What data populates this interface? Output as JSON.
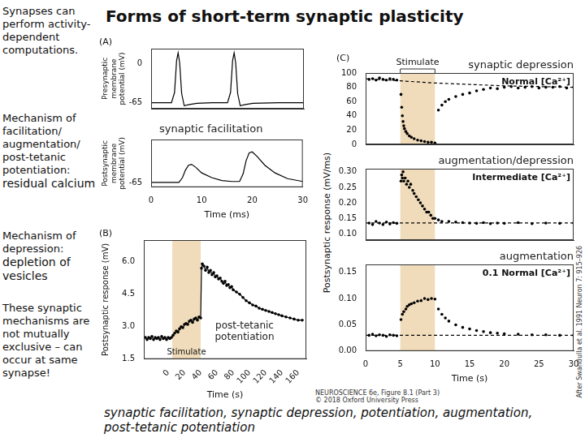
{
  "slide": {
    "title": "Forms of short-term synaptic plasticity",
    "sidebar": [
      {
        "text": "Synapses can perform activity-dependent computations."
      },
      {
        "text": "Mechanism of facilitation/ augmentation/ post-tetanic potentiation:",
        "emphasis": "residual calcium"
      },
      {
        "text": "Mechanism of depression:",
        "emphasis": "depletion of vesicles"
      },
      {
        "text": "These synaptic mechanisms are not mutually exclusive – can occur at same synapse!"
      }
    ],
    "footer": "synaptic facilitation, synaptic depression, potentiation, augmentation, post-tetanic potentiation",
    "credits": [
      "NEUROSCIENCE 6e, Figure 8.1 (Part 3)",
      "© 2018 Oxford University Press",
      "After Swandulla et al. 1991 Neuron 7: 915–926"
    ]
  },
  "chart_data": [
    {
      "type": "line",
      "panel_label": "(A)",
      "ylabel": "Presynaptic membrane potential (mV)",
      "xlim": [
        0,
        30
      ],
      "ylim": [
        -75,
        25
      ],
      "yticks": [
        -65,
        0
      ],
      "grid": false,
      "tick_labels": "y",
      "series": [
        {
          "color": "#000000",
          "line_style": "solid",
          "marker": "none",
          "x": [
            0,
            4,
            4.6,
            5,
            5.3,
            5.6,
            6,
            6.5,
            7.5,
            9,
            12,
            15,
            15.6,
            16,
            16.3,
            16.6,
            17,
            17.5,
            18.5,
            20,
            25,
            30
          ],
          "values": [
            -65,
            -65,
            -48,
            5,
            18,
            2,
            -50,
            -70,
            -68,
            -66,
            -65,
            -65,
            -48,
            5,
            18,
            2,
            -50,
            -70,
            -68,
            -66,
            -65,
            -65
          ]
        }
      ]
    },
    {
      "type": "line",
      "ylabel": "Postsynaptic membrane potential (mV)",
      "xlabel": "Time (ms)",
      "annotation": "synaptic facilitation",
      "xlim": [
        0,
        30
      ],
      "xticks": [
        0,
        10,
        20,
        30
      ],
      "ylim": [
        -70,
        -20
      ],
      "yticks": [
        -65
      ],
      "grid": false,
      "series": [
        {
          "color": "#000000",
          "line_style": "solid",
          "marker": "none",
          "x": [
            0,
            5.5,
            6.2,
            6.8,
            7.4,
            8,
            8.8,
            10,
            12,
            14,
            16,
            17.5,
            18.2,
            18.8,
            19.4,
            20,
            21,
            22.5,
            24.5,
            27,
            30
          ],
          "values": [
            -65,
            -65,
            -60,
            -52,
            -47,
            -46,
            -49,
            -55,
            -60,
            -63,
            -64,
            -64,
            -56,
            -42,
            -34,
            -33,
            -38,
            -47,
            -55,
            -61,
            -64
          ]
        }
      ]
    },
    {
      "type": "line",
      "panel_label": "(B)",
      "ylabel": "Postsynaptic response (mV)",
      "xlabel": "Time (s)",
      "annotation": "post-tetanic potentiation",
      "stimulus": [
        5,
        40
      ],
      "stimulus_label": "Stimulate",
      "xlim": [
        -30,
        170
      ],
      "xticks": [
        0,
        20,
        40,
        60,
        80,
        100,
        120,
        140,
        160
      ],
      "ylim": [
        1.5,
        7
      ],
      "yticks": [
        1.5,
        {
          "value": 3,
          "label": "3.0"
        },
        4.5,
        {
          "value": 6,
          "label": "6.0"
        }
      ],
      "grid": false,
      "series": [
        {
          "color": "#000000",
          "line_style": "solid",
          "marker": "circle",
          "x": [
            -28,
            -26,
            -24,
            -22,
            -20,
            -18,
            -16,
            -14,
            -12,
            -10,
            -8,
            -6,
            -4,
            -2,
            0,
            2,
            4,
            6,
            8,
            10,
            12,
            14,
            16,
            18,
            20,
            22,
            24,
            26,
            28,
            30,
            32,
            34,
            36,
            38,
            40,
            41,
            42,
            44,
            46,
            48,
            50,
            52,
            54,
            56,
            58,
            60,
            62,
            64,
            66,
            68,
            70,
            72,
            74,
            76,
            78,
            80,
            84,
            88,
            92,
            96,
            100,
            104,
            108,
            112,
            116,
            120,
            124,
            128,
            132,
            136,
            140,
            145,
            150,
            155,
            160,
            165
          ],
          "values": [
            2.5,
            2.4,
            2.5,
            2.45,
            2.55,
            2.4,
            2.5,
            2.45,
            2.5,
            2.4,
            2.55,
            2.45,
            2.5,
            2.4,
            2.5,
            2.45,
            2.5,
            2.6,
            2.7,
            2.8,
            2.75,
            2.9,
            3.0,
            2.95,
            3.1,
            3.15,
            3.1,
            3.25,
            3.3,
            3.2,
            3.35,
            3.4,
            3.3,
            3.45,
            3.4,
            5.7,
            5.9,
            5.8,
            5.6,
            5.75,
            5.5,
            5.6,
            5.4,
            5.5,
            5.3,
            5.35,
            5.2,
            5.25,
            5.1,
            5.0,
            5.1,
            4.9,
            4.95,
            4.8,
            4.85,
            4.7,
            4.6,
            4.5,
            4.35,
            4.2,
            4.1,
            4.0,
            3.95,
            3.85,
            3.8,
            3.75,
            3.7,
            3.65,
            3.6,
            3.55,
            3.5,
            3.45,
            3.4,
            3.35,
            3.3,
            3.3
          ]
        }
      ]
    },
    {
      "type": "scatter",
      "panel_label": "(C)",
      "title": "Normal [Ca²⁺]",
      "annotation": "synaptic depression",
      "stimulus": [
        5,
        10
      ],
      "stimulus_label": "Stimulate",
      "xlim": [
        0,
        30
      ],
      "ylim": [
        0,
        100
      ],
      "yticks": [
        0,
        20,
        40,
        60,
        80,
        100
      ],
      "grid": false,
      "tick_labels": "y",
      "series": [
        {
          "color": "#000000",
          "line_style": "none",
          "marker": "circle",
          "x": [
            0.5,
            1,
            1.5,
            2,
            2.5,
            3,
            3.5,
            4,
            4.5,
            5.1,
            5.2,
            5.3,
            5.4,
            5.5,
            5.6,
            5.8,
            6,
            6.3,
            6.6,
            7,
            7.5,
            8,
            8.5,
            9,
            9.5,
            10,
            10.5,
            11,
            11.5,
            12,
            13,
            14,
            15,
            16,
            17,
            18,
            19,
            20,
            21,
            22,
            23,
            24,
            25,
            26,
            27,
            28,
            29,
            30
          ],
          "values": [
            91,
            92,
            90,
            93,
            91,
            90,
            92,
            91,
            90,
            70,
            52,
            40,
            32,
            26,
            22,
            18,
            15,
            12,
            10,
            8,
            6,
            5,
            4,
            3,
            3,
            2,
            48,
            55,
            60,
            63,
            67,
            70,
            72,
            75,
            77,
            79,
            78,
            80,
            81,
            79,
            80,
            81,
            79,
            80,
            80,
            81,
            79,
            80
          ]
        },
        {
          "color": "#000000",
          "line_style": "dashed",
          "marker": "none",
          "x": [
            0,
            5,
            10,
            15,
            20,
            25,
            30
          ],
          "values": [
            92,
            89,
            86,
            84,
            82,
            81,
            80
          ]
        }
      ]
    },
    {
      "type": "scatter",
      "title": "Intermediate [Ca²⁺]",
      "annotation": "augmentation/depression",
      "ylabel": "Postsynaptic response (mV/ms)",
      "stimulus": [
        5,
        10
      ],
      "xlim": [
        0,
        30
      ],
      "ylim": [
        0.08,
        0.31
      ],
      "yticks": [
        {
          "value": 0.1,
          "label": "0.10"
        },
        0.15,
        {
          "value": 0.2,
          "label": "0.20"
        },
        0.25,
        {
          "value": 0.3,
          "label": "0.30"
        }
      ],
      "grid": false,
      "tick_labels": "y",
      "series": [
        {
          "color": "#000000",
          "line_style": "none",
          "marker": "circle",
          "x": [
            0.5,
            1,
            1.5,
            2,
            2.5,
            3,
            3.5,
            4,
            4.5,
            5.1,
            5.2,
            5.3,
            5.4,
            5.5,
            5.7,
            5.9,
            6.1,
            6.3,
            6.5,
            6.8,
            7,
            7.3,
            7.6,
            7.9,
            8.2,
            8.5,
            8.8,
            9.1,
            9.4,
            9.7,
            10,
            10.5,
            11,
            12,
            13,
            14,
            15,
            16,
            17,
            18,
            19,
            20,
            22,
            24,
            26,
            28,
            30
          ],
          "values": [
            0.135,
            0.13,
            0.14,
            0.135,
            0.13,
            0.138,
            0.132,
            0.136,
            0.134,
            0.27,
            0.29,
            0.28,
            0.3,
            0.27,
            0.28,
            0.26,
            0.27,
            0.25,
            0.26,
            0.24,
            0.23,
            0.22,
            0.21,
            0.2,
            0.19,
            0.18,
            0.17,
            0.17,
            0.16,
            0.15,
            0.15,
            0.145,
            0.14,
            0.14,
            0.138,
            0.136,
            0.135,
            0.134,
            0.136,
            0.133,
            0.135,
            0.134,
            0.136,
            0.133,
            0.135,
            0.134,
            0.135
          ]
        },
        {
          "color": "#000000",
          "line_style": "dashed",
          "marker": "none",
          "x": [
            0,
            30
          ],
          "values": [
            0.135,
            0.135
          ]
        }
      ]
    },
    {
      "type": "scatter",
      "title": "0.1 Normal [Ca²⁺]",
      "annotation": "augmentation",
      "xlabel": "Time (s)",
      "stimulus": [
        5,
        10
      ],
      "xlim": [
        0,
        30
      ],
      "xticks": [
        0,
        5,
        10,
        15,
        20,
        25,
        30
      ],
      "ylim": [
        0,
        0.165
      ],
      "yticks": [
        {
          "value": 0,
          "label": "0.00"
        },
        0.05,
        {
          "value": 0.1,
          "label": "0.10"
        },
        0.15
      ],
      "grid": false,
      "series": [
        {
          "color": "#000000",
          "line_style": "none",
          "marker": "circle",
          "x": [
            0.5,
            1,
            1.5,
            2,
            2.5,
            3,
            3.5,
            4,
            4.5,
            5.1,
            5.3,
            5.5,
            5.8,
            6,
            6.3,
            6.6,
            7,
            7.5,
            8,
            8.5,
            9,
            9.5,
            10,
            10.5,
            11,
            11.5,
            12,
            13,
            14,
            15,
            16,
            17,
            18,
            19,
            20,
            22,
            24,
            26,
            28,
            30
          ],
          "values": [
            0.03,
            0.032,
            0.029,
            0.031,
            0.03,
            0.028,
            0.031,
            0.03,
            0.029,
            0.06,
            0.07,
            0.075,
            0.08,
            0.085,
            0.088,
            0.09,
            0.092,
            0.095,
            0.096,
            0.1,
            0.098,
            0.1,
            0.099,
            0.08,
            0.07,
            0.063,
            0.057,
            0.05,
            0.045,
            0.042,
            0.039,
            0.037,
            0.035,
            0.034,
            0.033,
            0.032,
            0.031,
            0.031,
            0.03,
            0.03
          ]
        },
        {
          "color": "#000000",
          "line_style": "dashed",
          "marker": "none",
          "x": [
            0,
            30
          ],
          "values": [
            0.03,
            0.03
          ]
        }
      ]
    }
  ]
}
